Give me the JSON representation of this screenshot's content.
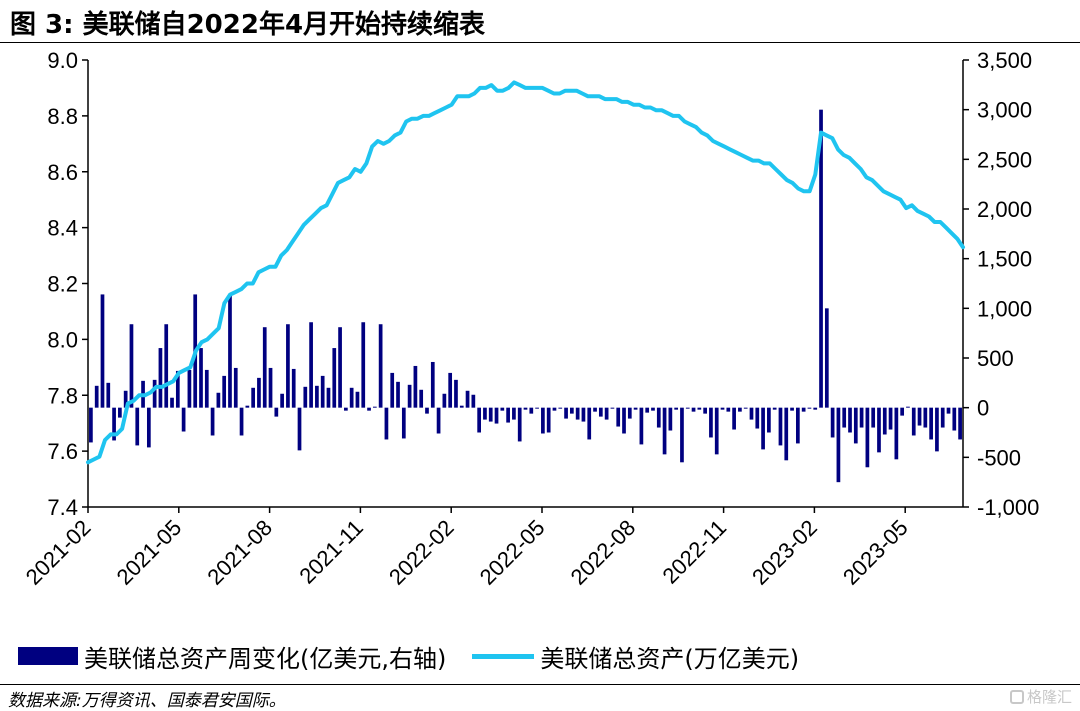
{
  "figure": {
    "title": "图 3:  美联储自2022年4月开始持续缩表",
    "source": "数据来源:万得资讯、国泰君安国际。",
    "watermark": "格隆汇"
  },
  "legend": {
    "bar_label": "美联储总资产周变化(亿美元,右轴)",
    "line_label": "美联储总资产(万亿美元)"
  },
  "colors": {
    "bar": "#000080",
    "line": "#1fc4f0"
  },
  "chart_data": {
    "type": "bar+line",
    "x_start": "2021-02",
    "x_end": "2023-06",
    "x_tick_labels": [
      "2021-02",
      "2021-05",
      "2021-08",
      "2021-11",
      "2022-02",
      "2022-05",
      "2022-08",
      "2022-11",
      "2023-02",
      "2023-05"
    ],
    "left_axis": {
      "min": 7.4,
      "max": 9.0,
      "ticks": [
        "7.4",
        "7.6",
        "7.8",
        "8.0",
        "8.2",
        "8.4",
        "8.6",
        "8.8",
        "9.0"
      ]
    },
    "right_axis": {
      "min": -1000,
      "max": 3500,
      "ticks": [
        "-1,000",
        "-500",
        "0",
        "500",
        "1,000",
        "1,500",
        "2,000",
        "2,500",
        "3,000",
        "3,500"
      ]
    },
    "series": [
      {
        "name": "美联储总资产周变化(亿美元,右轴)",
        "kind": "bar",
        "axis": "right",
        "values": [
          -350,
          220,
          1140,
          250,
          -330,
          -100,
          170,
          840,
          -380,
          270,
          -400,
          280,
          600,
          840,
          100,
          370,
          -240,
          380,
          1140,
          600,
          380,
          -280,
          150,
          320,
          1130,
          400,
          -280,
          20,
          200,
          300,
          810,
          400,
          -90,
          140,
          840,
          390,
          -430,
          210,
          860,
          220,
          320,
          200,
          600,
          810,
          -30,
          200,
          160,
          860,
          -30,
          10,
          840,
          -320,
          350,
          260,
          -310,
          230,
          420,
          180,
          -60,
          460,
          -260,
          140,
          350,
          280,
          20,
          170,
          130,
          -250,
          -120,
          -140,
          -160,
          -30,
          -150,
          -120,
          -340,
          -20,
          -60,
          -10,
          -260,
          -250,
          -30,
          -10,
          -110,
          -60,
          -120,
          -140,
          -320,
          -40,
          -90,
          -120,
          -10,
          -190,
          -260,
          -110,
          -20,
          -370,
          -50,
          -30,
          -200,
          -470,
          -230,
          -20,
          -550,
          -10,
          -40,
          -20,
          -60,
          -300,
          -470,
          -20,
          -40,
          -220,
          -40,
          -10,
          -120,
          -210,
          -420,
          -250,
          -20,
          -380,
          -530,
          -30,
          -360,
          -40,
          -10,
          -20,
          3000,
          1000,
          -300,
          -750,
          -200,
          -250,
          -360,
          -200,
          -600,
          -200,
          -450,
          -270,
          -220,
          -520,
          -80,
          10,
          -280,
          -180,
          -200,
          -320,
          -440,
          -200,
          -60,
          -230,
          -320
        ]
      },
      {
        "name": "美联储总资产(万亿美元)",
        "kind": "line",
        "axis": "left",
        "values": [
          7.56,
          7.57,
          7.58,
          7.64,
          7.66,
          7.66,
          7.68,
          7.77,
          7.78,
          7.8,
          7.8,
          7.81,
          7.83,
          7.83,
          7.84,
          7.85,
          7.88,
          7.89,
          7.9,
          7.96,
          7.99,
          8.0,
          8.02,
          8.04,
          8.13,
          8.16,
          8.17,
          8.18,
          8.2,
          8.2,
          8.24,
          8.25,
          8.26,
          8.26,
          8.3,
          8.32,
          8.35,
          8.38,
          8.41,
          8.43,
          8.45,
          8.47,
          8.48,
          8.52,
          8.56,
          8.57,
          8.58,
          8.61,
          8.6,
          8.63,
          8.69,
          8.71,
          8.7,
          8.71,
          8.73,
          8.74,
          8.78,
          8.79,
          8.79,
          8.8,
          8.8,
          8.81,
          8.82,
          8.83,
          8.84,
          8.87,
          8.87,
          8.87,
          8.88,
          8.9,
          8.9,
          8.91,
          8.89,
          8.89,
          8.9,
          8.92,
          8.91,
          8.9,
          8.9,
          8.9,
          8.9,
          8.89,
          8.88,
          8.88,
          8.89,
          8.89,
          8.89,
          8.88,
          8.87,
          8.87,
          8.87,
          8.86,
          8.86,
          8.86,
          8.85,
          8.85,
          8.84,
          8.84,
          8.83,
          8.83,
          8.82,
          8.82,
          8.81,
          8.8,
          8.8,
          8.78,
          8.77,
          8.76,
          8.74,
          8.73,
          8.71,
          8.7,
          8.69,
          8.68,
          8.67,
          8.66,
          8.65,
          8.64,
          8.64,
          8.63,
          8.63,
          8.61,
          8.59,
          8.57,
          8.56,
          8.54,
          8.53,
          8.53,
          8.59,
          8.74,
          8.73,
          8.72,
          8.68,
          8.66,
          8.65,
          8.63,
          8.61,
          8.58,
          8.57,
          8.55,
          8.53,
          8.52,
          8.51,
          8.5,
          8.47,
          8.48,
          8.46,
          8.45,
          8.44,
          8.42,
          8.42,
          8.4,
          8.38,
          8.36,
          8.33
        ]
      }
    ]
  }
}
